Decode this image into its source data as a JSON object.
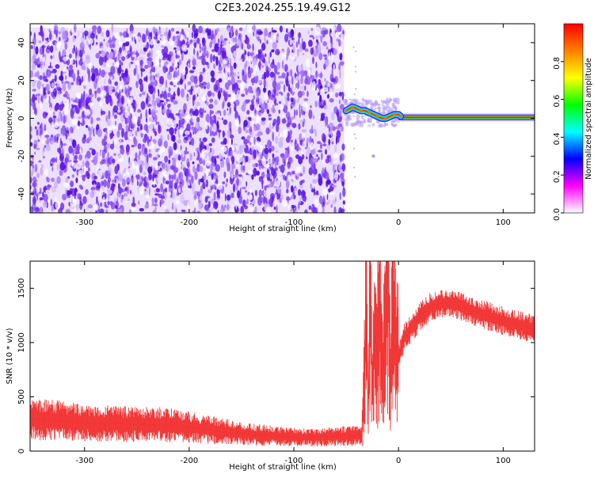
{
  "figure": {
    "title": "C2E3.2024.255.19.49.G12"
  },
  "chart_data": [
    {
      "type": "heatmap",
      "xlabel": "Height of straight line (km)",
      "ylabel": "Frequency (Hz)",
      "xlim": [
        -352,
        130
      ],
      "ylim": [
        -50,
        50
      ],
      "x_ticks": [
        -300,
        -200,
        -100,
        0,
        100
      ],
      "x_tick_labels": [
        "-300",
        "-200",
        "-100",
        "0",
        "100"
      ],
      "y_ticks": [
        -40,
        -20,
        0,
        20,
        40
      ],
      "y_tick_labels": [
        "-40",
        "-20",
        "0",
        "20",
        "40"
      ],
      "colorbar": {
        "label": "Normalized spectral amplitude",
        "range": [
          0,
          1
        ],
        "ticks": [
          0.0,
          0.2,
          0.4,
          0.6,
          0.8
        ],
        "tick_labels": [
          "0.0",
          "0.2",
          "0.4",
          "0.6",
          "0.8"
        ],
        "colormap": [
          "#ffffff",
          "#ff00ff",
          "#0000ff",
          "#00ffff",
          "#00ff00",
          "#ffff00",
          "#ff8000",
          "#ff0000"
        ]
      },
      "regions": {
        "noise_field": {
          "x": [
            -352,
            -52
          ],
          "y": [
            -50,
            48
          ]
        },
        "transition": {
          "x": [
            -52,
            0
          ]
        },
        "carrier_line": {
          "x": [
            0,
            130
          ],
          "y_value": 0.5
        }
      },
      "carrier_trace": {
        "x": [
          -50,
          -47,
          -44,
          -40,
          -36,
          -32,
          -28,
          -24,
          -20,
          -16,
          -12,
          -8,
          -4,
          0,
          2
        ],
        "y": [
          4,
          5,
          6,
          5,
          4,
          4,
          3,
          2,
          1,
          0,
          0,
          1,
          2,
          2,
          1
        ]
      }
    },
    {
      "type": "line",
      "xlabel": "Height of straight line (km)",
      "ylabel": "SNR (10 * v/v)",
      "xlim": [
        -352,
        130
      ],
      "ylim": [
        0,
        1750
      ],
      "x_ticks": [
        -300,
        -200,
        -100,
        0,
        100
      ],
      "x_tick_labels": [
        "-300",
        "-200",
        "-100",
        "0",
        "100"
      ],
      "y_ticks": [
        0,
        500,
        1000,
        1500
      ],
      "y_tick_labels": [
        "0",
        "500",
        "1000",
        "1500"
      ],
      "color": "#f23333",
      "series": [
        {
          "x": [
            -352,
            -330,
            -300,
            -260,
            -230,
            -220,
            -200,
            -150,
            -100,
            -80,
            -50,
            -40,
            -35,
            -32,
            -31,
            -29,
            -27,
            -25,
            -23,
            -21,
            -18,
            -15,
            -12,
            -10,
            -8,
            -5,
            -2,
            0,
            5,
            10,
            20,
            30,
            40,
            50,
            60,
            80,
            100,
            120,
            130
          ],
          "y": [
            300,
            285,
            260,
            250,
            245,
            240,
            220,
            160,
            130,
            125,
            140,
            140,
            150,
            800,
            1680,
            300,
            1500,
            500,
            1100,
            900,
            1350,
            700,
            1200,
            1750,
            650,
            1300,
            900,
            850,
            1050,
            1100,
            1230,
            1330,
            1360,
            1370,
            1330,
            1260,
            1200,
            1150,
            1120
          ]
        }
      ]
    }
  ]
}
